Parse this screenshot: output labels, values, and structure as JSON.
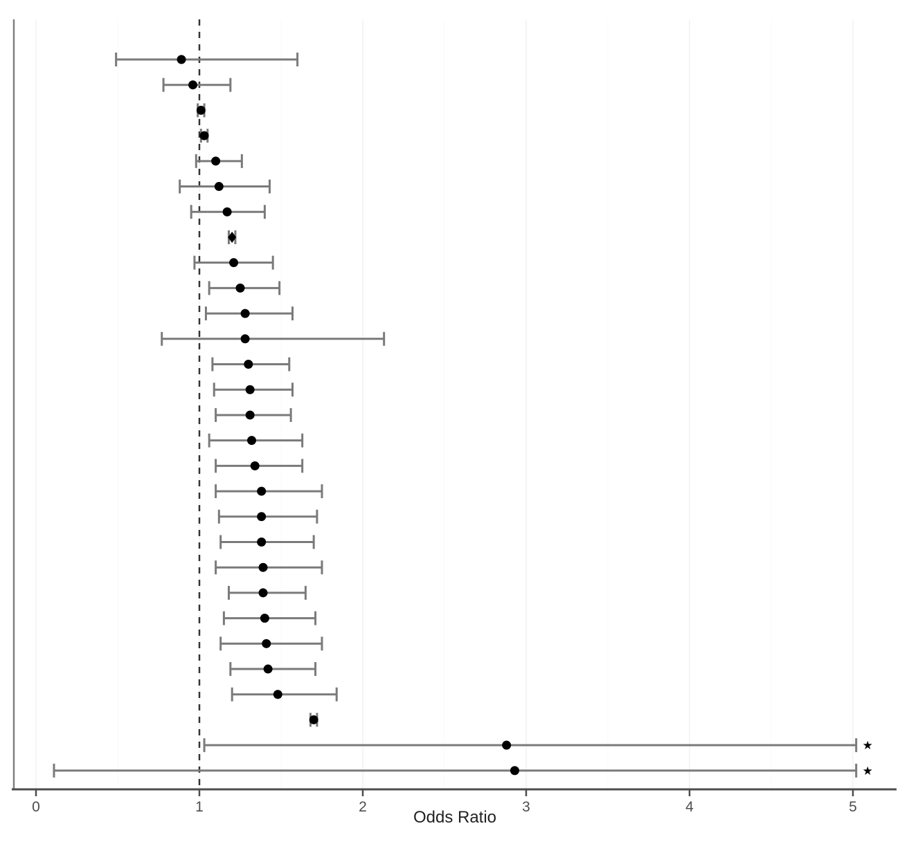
{
  "figure": {
    "background": "#ffffff"
  },
  "chart_data": {
    "type": "scatter",
    "subtype": "forest-plot",
    "title": "",
    "xlabel": "Odds Ratio",
    "ylabel": "",
    "x_tick_values": [
      0,
      1,
      2,
      3,
      4,
      5
    ],
    "x_tick_labels": [
      "0",
      "1",
      "2",
      "3",
      "4",
      "5"
    ],
    "xlim": [
      0,
      5.28
    ],
    "reference_line_x": 1.0,
    "grid": "very faint vertical gridlines at 0.5 steps",
    "legend_position": "none",
    "truncation_marker_glyph": "★",
    "truncation_marker_x": 5.09,
    "rows": [
      {
        "or": 0.89,
        "lo": 0.49,
        "hi": 1.6,
        "marker": "circle",
        "truncated": false
      },
      {
        "or": 0.96,
        "lo": 0.78,
        "hi": 1.19,
        "marker": "circle",
        "truncated": false
      },
      {
        "or": 1.01,
        "lo": 0.99,
        "hi": 1.03,
        "marker": "circle",
        "truncated": false
      },
      {
        "or": 1.03,
        "lo": 1.01,
        "hi": 1.05,
        "marker": "circle",
        "truncated": false
      },
      {
        "or": 1.1,
        "lo": 0.98,
        "hi": 1.26,
        "marker": "circle",
        "truncated": false
      },
      {
        "or": 1.12,
        "lo": 0.88,
        "hi": 1.43,
        "marker": "circle",
        "truncated": false
      },
      {
        "or": 1.17,
        "lo": 0.95,
        "hi": 1.4,
        "marker": "circle",
        "truncated": false
      },
      {
        "or": 1.2,
        "lo": 1.18,
        "hi": 1.22,
        "marker": "diamond",
        "truncated": false
      },
      {
        "or": 1.21,
        "lo": 0.97,
        "hi": 1.45,
        "marker": "circle",
        "truncated": false
      },
      {
        "or": 1.25,
        "lo": 1.06,
        "hi": 1.49,
        "marker": "circle",
        "truncated": false
      },
      {
        "or": 1.28,
        "lo": 1.04,
        "hi": 1.57,
        "marker": "circle",
        "truncated": false
      },
      {
        "or": 1.28,
        "lo": 0.77,
        "hi": 2.13,
        "marker": "circle",
        "truncated": false
      },
      {
        "or": 1.3,
        "lo": 1.08,
        "hi": 1.55,
        "marker": "circle",
        "truncated": false
      },
      {
        "or": 1.31,
        "lo": 1.09,
        "hi": 1.57,
        "marker": "circle",
        "truncated": false
      },
      {
        "or": 1.31,
        "lo": 1.1,
        "hi": 1.56,
        "marker": "circle",
        "truncated": false
      },
      {
        "or": 1.32,
        "lo": 1.06,
        "hi": 1.63,
        "marker": "circle",
        "truncated": false
      },
      {
        "or": 1.34,
        "lo": 1.1,
        "hi": 1.63,
        "marker": "circle",
        "truncated": false
      },
      {
        "or": 1.38,
        "lo": 1.1,
        "hi": 1.75,
        "marker": "circle",
        "truncated": false
      },
      {
        "or": 1.38,
        "lo": 1.12,
        "hi": 1.72,
        "marker": "circle",
        "truncated": false
      },
      {
        "or": 1.38,
        "lo": 1.13,
        "hi": 1.7,
        "marker": "circle",
        "truncated": false
      },
      {
        "or": 1.39,
        "lo": 1.1,
        "hi": 1.75,
        "marker": "circle",
        "truncated": false
      },
      {
        "or": 1.39,
        "lo": 1.18,
        "hi": 1.65,
        "marker": "circle",
        "truncated": false
      },
      {
        "or": 1.4,
        "lo": 1.15,
        "hi": 1.71,
        "marker": "circle",
        "truncated": false
      },
      {
        "or": 1.41,
        "lo": 1.13,
        "hi": 1.75,
        "marker": "circle",
        "truncated": false
      },
      {
        "or": 1.42,
        "lo": 1.19,
        "hi": 1.71,
        "marker": "circle",
        "truncated": false
      },
      {
        "or": 1.48,
        "lo": 1.2,
        "hi": 1.84,
        "marker": "circle",
        "truncated": false
      },
      {
        "or": 1.7,
        "lo": 1.68,
        "hi": 1.72,
        "marker": "circle",
        "truncated": false
      },
      {
        "or": 2.88,
        "lo": 1.03,
        "hi": 5.02,
        "marker": "circle",
        "truncated": true
      },
      {
        "or": 2.93,
        "lo": 0.11,
        "hi": 5.02,
        "marker": "circle",
        "truncated": true
      }
    ],
    "colors": {
      "marker": "#000000",
      "ci_line": "#7a7a7a",
      "axis_line": "#4d4d4d",
      "y_axis_line": "#808080",
      "tick_label": "#4d4d4d",
      "axis_title": "#222222",
      "reference_line": "#333333",
      "grid_major": "#f2f2f2",
      "grid_minor": "#f8f8f8",
      "background": "#ffffff"
    }
  }
}
